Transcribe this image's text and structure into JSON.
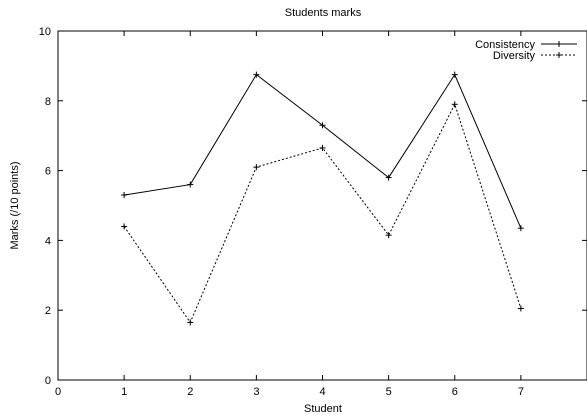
{
  "chart_data": {
    "type": "line",
    "title": "Students marks",
    "xlabel": "Student",
    "ylabel": "Marks (/10 points)",
    "xlim": [
      0,
      8
    ],
    "ylim": [
      0,
      10
    ],
    "xticks": [
      0,
      1,
      2,
      3,
      4,
      5,
      6,
      7
    ],
    "yticks": [
      0,
      2,
      4,
      6,
      8,
      10
    ],
    "grid": false,
    "legend_position": "top-right",
    "x": [
      1,
      2,
      3,
      4,
      5,
      6,
      7
    ],
    "series": [
      {
        "name": "Consistency",
        "values": [
          5.3,
          5.6,
          8.75,
          7.3,
          5.8,
          8.75,
          4.35
        ],
        "line_style": "solid",
        "marker": "+",
        "color": "#000000"
      },
      {
        "name": "Diversity",
        "values": [
          4.4,
          1.65,
          6.1,
          6.65,
          4.15,
          7.9,
          2.05
        ],
        "line_style": "dotted",
        "marker": "+",
        "color": "#000000"
      }
    ]
  }
}
